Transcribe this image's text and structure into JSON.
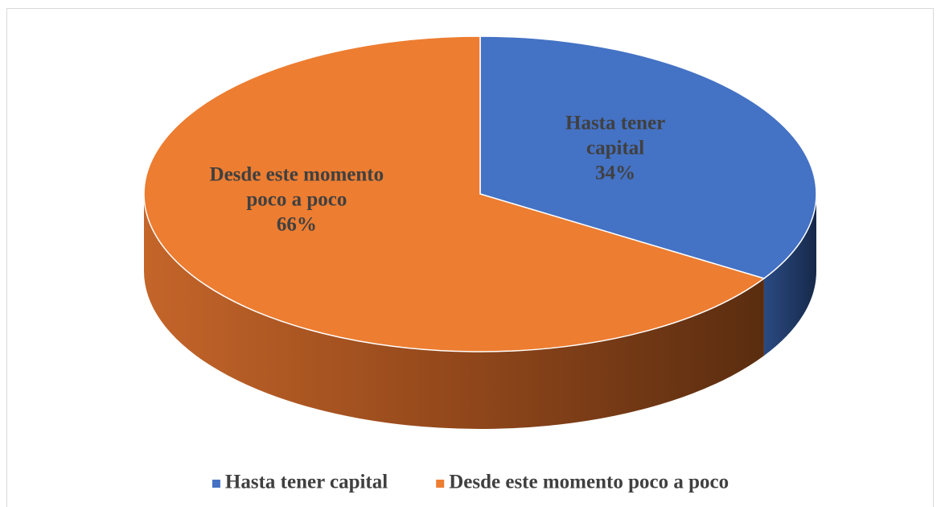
{
  "chart_data": {
    "type": "pie",
    "view": "3d",
    "categories": [
      "Hasta tener capital",
      "Desde este momento poco a poco"
    ],
    "values": [
      34,
      66
    ],
    "value_labels": [
      "34%",
      "66%"
    ],
    "colors": [
      "#4472c4",
      "#ed7d31"
    ],
    "legend": "bottom"
  }
}
